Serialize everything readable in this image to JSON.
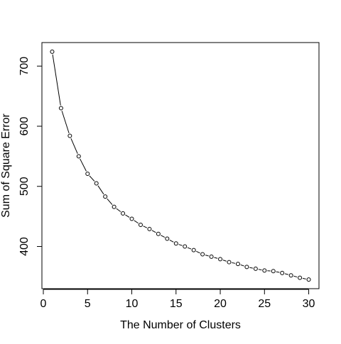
{
  "chart_data": {
    "type": "line",
    "title": "",
    "xlabel": "The Number of Clusters",
    "ylabel": "Sum of Square Error",
    "xlim": [
      1,
      30
    ],
    "ylim": [
      345,
      724
    ],
    "x_ticks": [
      0,
      5,
      10,
      15,
      20,
      25,
      30
    ],
    "y_ticks": [
      400,
      500,
      600,
      700
    ],
    "grid": false,
    "legend": "none",
    "series": [
      {
        "x": [
          1,
          2,
          3,
          4,
          5,
          6,
          7,
          8,
          9,
          10,
          11,
          12,
          13,
          14,
          15,
          16,
          17,
          18,
          19,
          20,
          21,
          22,
          23,
          24,
          25,
          26,
          27,
          28,
          29,
          30
        ],
        "y": [
          724,
          630,
          584,
          550,
          521,
          505,
          483,
          466,
          455,
          446,
          436,
          429,
          421,
          413,
          405,
          400,
          394,
          387,
          383,
          379,
          374,
          371,
          366,
          363,
          360,
          359,
          356,
          352,
          348,
          345
        ]
      }
    ],
    "style": {
      "line_color": "#000000",
      "point_fill": "#ffffff",
      "point_stroke": "#000000"
    }
  }
}
